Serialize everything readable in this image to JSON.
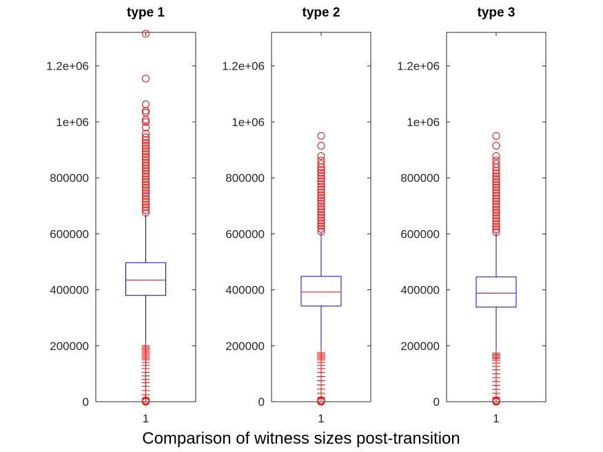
{
  "caption": "Comparison of witness sizes post-transition",
  "colors": {
    "axes": "#262626",
    "box": "#0000ff",
    "median": "#ff0000",
    "outliers": "#ff0000"
  },
  "chart_data": [
    {
      "type": "boxplot",
      "title": "type 1",
      "categories": [
        "1"
      ],
      "ylim": [
        0,
        1320000
      ],
      "yticks": [
        0,
        200000,
        400000,
        600000,
        800000,
        1000000,
        1200000
      ],
      "ytick_labels": [
        "0",
        "200000",
        "400000",
        "600000",
        "800000",
        "1e+06",
        "1.2e+06"
      ],
      "box": {
        "q1": 380000,
        "median": 435000,
        "q3": 497000,
        "whisker_low": 205000,
        "whisker_high": 670000
      },
      "outliers_high": [
        675000,
        685000,
        695000,
        705000,
        715000,
        725000,
        735000,
        745000,
        755000,
        765000,
        775000,
        785000,
        795000,
        805000,
        815000,
        825000,
        835000,
        845000,
        855000,
        865000,
        875000,
        885000,
        895000,
        905000,
        915000,
        925000,
        935000,
        945000,
        958000,
        980000,
        1000000,
        1008000,
        1033000,
        1040000,
        1063000,
        1155000,
        1315000
      ],
      "outliers_low": [
        200000,
        195000,
        190000,
        185000,
        180000,
        175000,
        170000,
        165000,
        160000,
        155000,
        150000,
        140000,
        130000,
        118000,
        105000,
        92000,
        80000,
        68000,
        55000,
        40000,
        25000,
        12000,
        5000,
        2000,
        0
      ],
      "grid": false,
      "legend": "none"
    },
    {
      "type": "boxplot",
      "title": "type 2",
      "categories": [
        "1"
      ],
      "ylim": [
        0,
        1320000
      ],
      "yticks": [
        0,
        200000,
        400000,
        600000,
        800000,
        1000000,
        1200000
      ],
      "ytick_labels": [
        "0",
        "200000",
        "400000",
        "600000",
        "800000",
        "1e+06",
        "1.2e+06"
      ],
      "box": {
        "q1": 342000,
        "median": 392000,
        "q3": 448000,
        "whisker_low": 180000,
        "whisker_high": 605000
      },
      "outliers_high": [
        608000,
        618000,
        628000,
        638000,
        648000,
        658000,
        668000,
        678000,
        688000,
        698000,
        708000,
        718000,
        728000,
        738000,
        748000,
        758000,
        768000,
        778000,
        788000,
        798000,
        808000,
        818000,
        828000,
        838000,
        850000,
        862000,
        878000,
        915000,
        950000
      ],
      "outliers_low": [
        175000,
        170000,
        165000,
        160000,
        155000,
        150000,
        140000,
        130000,
        118000,
        105000,
        90000,
        75000,
        60000,
        45000,
        30000,
        15000,
        5000,
        2000,
        0
      ],
      "grid": false,
      "legend": "none"
    },
    {
      "type": "boxplot",
      "title": "type 3",
      "categories": [
        "1"
      ],
      "ylim": [
        0,
        1320000
      ],
      "yticks": [
        0,
        200000,
        400000,
        600000,
        800000,
        1000000,
        1200000
      ],
      "ytick_labels": [
        "0",
        "200000",
        "400000",
        "600000",
        "800000",
        "1e+06",
        "1.2e+06"
      ],
      "box": {
        "q1": 338000,
        "median": 388000,
        "q3": 446000,
        "whisker_low": 178000,
        "whisker_high": 603000
      },
      "outliers_high": [
        606000,
        616000,
        626000,
        636000,
        646000,
        656000,
        666000,
        676000,
        686000,
        696000,
        706000,
        716000,
        726000,
        736000,
        746000,
        756000,
        766000,
        776000,
        786000,
        796000,
        806000,
        816000,
        826000,
        838000,
        850000,
        862000,
        878000,
        915000,
        950000
      ],
      "outliers_low": [
        174000,
        169000,
        164000,
        159000,
        154000,
        148000,
        138000,
        126000,
        114000,
        100000,
        86000,
        72000,
        58000,
        44000,
        30000,
        15000,
        5000,
        2000,
        0
      ],
      "grid": false,
      "legend": "none"
    }
  ]
}
